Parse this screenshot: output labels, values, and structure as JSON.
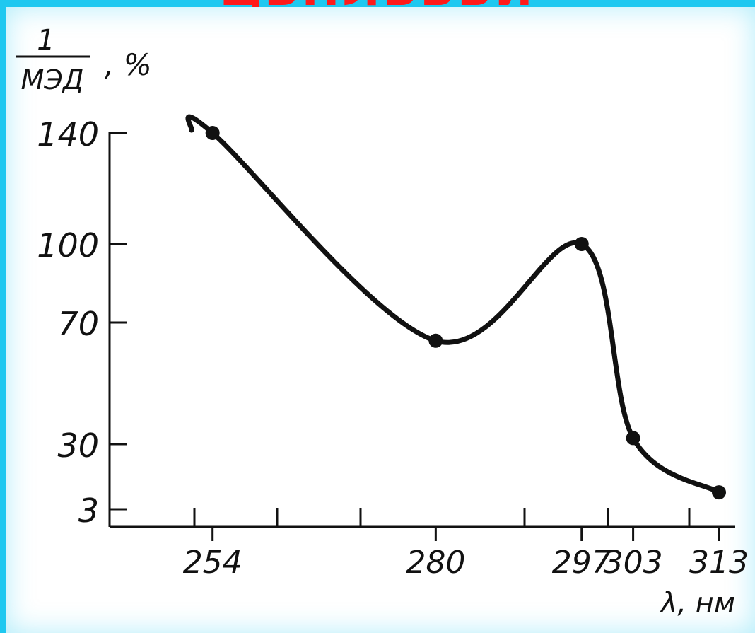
{
  "slide": {
    "title_fragment": "ЦВНЛЬБЬИ",
    "background_color": "#1ec8f0",
    "title_color": "#ff1a1a"
  },
  "chart_data": {
    "type": "line",
    "title": "",
    "ylabel_numerator": "1",
    "ylabel_denominator": "МЭД",
    "ylabel_unit": ", %",
    "xlabel": "λ, нм",
    "x": [
      254,
      280,
      297,
      303,
      313
    ],
    "y": [
      140,
      64,
      100,
      32,
      10
    ],
    "x_tick_labels": [
      "254",
      "280",
      "297",
      "303",
      "313"
    ],
    "y_tick_labels": [
      "3",
      "30",
      "70",
      "100",
      "140"
    ],
    "y_ticks": [
      3,
      30,
      70,
      100,
      140
    ],
    "xlim": [
      242,
      313
    ],
    "grid": false,
    "line_color": "#111111"
  }
}
